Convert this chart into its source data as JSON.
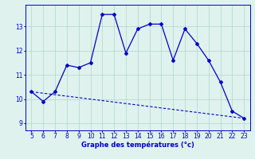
{
  "x": [
    5,
    6,
    7,
    8,
    9,
    10,
    11,
    12,
    13,
    14,
    15,
    16,
    17,
    18,
    19,
    20,
    21,
    22,
    23
  ],
  "y": [
    10.3,
    9.9,
    10.3,
    11.4,
    11.3,
    11.5,
    13.5,
    13.5,
    11.9,
    12.9,
    13.1,
    13.1,
    11.6,
    12.9,
    12.3,
    11.6,
    10.7,
    9.5,
    9.2
  ],
  "trend_x": [
    5,
    23
  ],
  "trend_y": [
    10.3,
    9.2
  ],
  "line_color": "#0000cc",
  "bg_color": "#dff2ee",
  "grid_color": "#b0d4cc",
  "xlabel": "Graphe des températures (°c)",
  "xlabel_color": "#0000cc",
  "ylim": [
    8.7,
    13.9
  ],
  "xlim": [
    4.5,
    23.5
  ],
  "yticks": [
    9,
    10,
    11,
    12,
    13
  ],
  "xticks": [
    5,
    6,
    7,
    8,
    9,
    10,
    11,
    12,
    13,
    14,
    15,
    16,
    17,
    18,
    19,
    20,
    21,
    22,
    23
  ],
  "tick_fontsize": 5.5,
  "xlabel_fontsize": 6.0
}
